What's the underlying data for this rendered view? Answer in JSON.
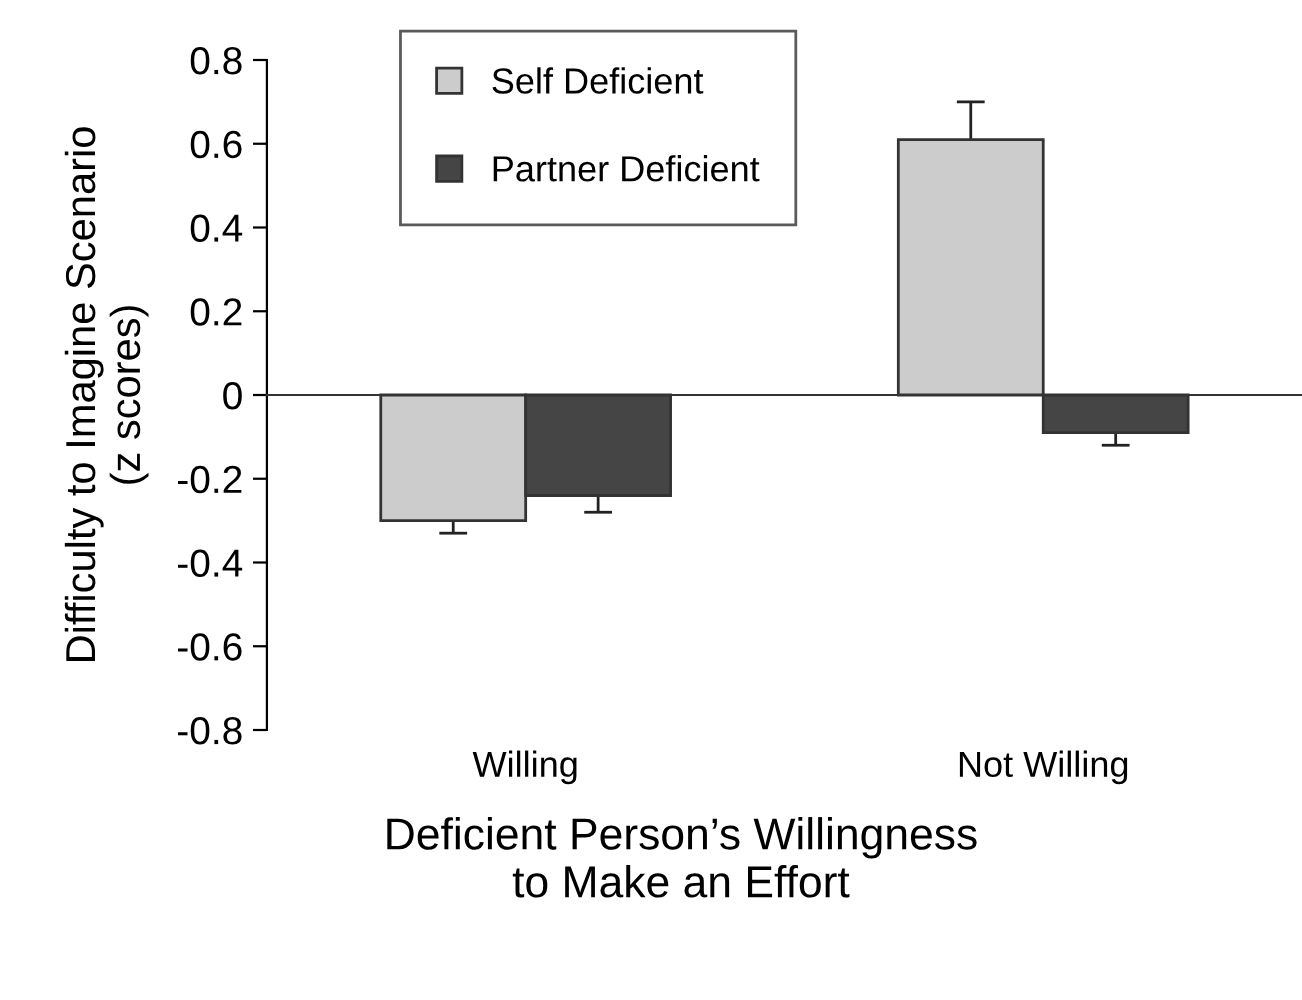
{
  "chart_data": {
    "type": "bar",
    "categories": [
      "Willing",
      "Not Willing"
    ],
    "series": [
      {
        "name": "Self Deficient",
        "color": "#cccccc",
        "values": [
          -0.3,
          0.61
        ],
        "errors": [
          0.03,
          0.09
        ]
      },
      {
        "name": "Partner Deficient",
        "color": "#454545",
        "values": [
          -0.24,
          -0.09
        ],
        "errors": [
          0.04,
          0.03
        ]
      }
    ],
    "ylabel": "Difficulty to Imagine Scenario\n(z scores)",
    "xlabel": "Deficient Person’s Willingness\nto Make an Effort",
    "ylim": [
      -0.8,
      0.8
    ],
    "yticks": [
      -0.8,
      -0.6,
      -0.4,
      -0.2,
      0,
      0.2,
      0.4,
      0.6,
      0.8
    ],
    "legend": "top"
  }
}
